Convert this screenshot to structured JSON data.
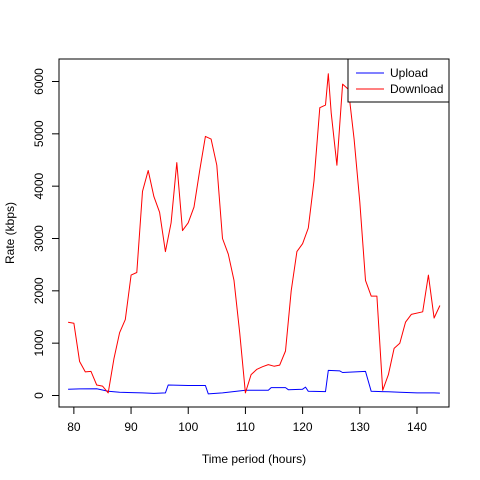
{
  "chart_data": {
    "type": "line",
    "title": "",
    "xlabel": "Time period (hours)",
    "ylabel": "Rate (kbps)",
    "xlim": [
      77.4,
      145.6
    ],
    "ylim": [
      -220,
      6430
    ],
    "xticks": [
      80,
      90,
      100,
      110,
      120,
      130,
      140
    ],
    "yticks": [
      0,
      1000,
      2000,
      3000,
      4000,
      5000,
      6000
    ],
    "grid": false,
    "legend_position": "top-right",
    "series": [
      {
        "name": "Upload",
        "color": "#0000ff",
        "points": [
          [
            79,
            120
          ],
          [
            81,
            125
          ],
          [
            84,
            130
          ],
          [
            86,
            80
          ],
          [
            88,
            60
          ],
          [
            92,
            50
          ],
          [
            94,
            40
          ],
          [
            96,
            50
          ],
          [
            96.5,
            200
          ],
          [
            100,
            190
          ],
          [
            103,
            190
          ],
          [
            103.5,
            30
          ],
          [
            106,
            50
          ],
          [
            110,
            100
          ],
          [
            114,
            100
          ],
          [
            114.5,
            150
          ],
          [
            117,
            150
          ],
          [
            117.5,
            110
          ],
          [
            120,
            120
          ],
          [
            120.5,
            160
          ],
          [
            121,
            80
          ],
          [
            124,
            75
          ],
          [
            124.5,
            480
          ],
          [
            126.5,
            470
          ],
          [
            127,
            440
          ],
          [
            131,
            460
          ],
          [
            132,
            80
          ],
          [
            135,
            70
          ],
          [
            137,
            60
          ],
          [
            140,
            50
          ],
          [
            143,
            50
          ],
          [
            144,
            45
          ]
        ]
      },
      {
        "name": "Download",
        "color": "#ff0000",
        "points": [
          [
            79,
            1400
          ],
          [
            80,
            1380
          ],
          [
            81,
            650
          ],
          [
            82,
            450
          ],
          [
            83,
            460
          ],
          [
            84,
            200
          ],
          [
            85,
            180
          ],
          [
            86,
            50
          ],
          [
            87,
            700
          ],
          [
            88,
            1200
          ],
          [
            89,
            1450
          ],
          [
            90,
            2300
          ],
          [
            91,
            2350
          ],
          [
            92,
            3900
          ],
          [
            93,
            4300
          ],
          [
            94,
            3800
          ],
          [
            95,
            3500
          ],
          [
            96,
            2750
          ],
          [
            97,
            3300
          ],
          [
            98,
            4450
          ],
          [
            99,
            3150
          ],
          [
            100,
            3300
          ],
          [
            101,
            3600
          ],
          [
            102,
            4300
          ],
          [
            103,
            4950
          ],
          [
            104,
            4900
          ],
          [
            105,
            4400
          ],
          [
            106,
            3000
          ],
          [
            107,
            2700
          ],
          [
            108,
            2200
          ],
          [
            109,
            1200
          ],
          [
            110,
            50
          ],
          [
            111,
            400
          ],
          [
            112,
            500
          ],
          [
            113,
            550
          ],
          [
            114,
            590
          ],
          [
            115,
            560
          ],
          [
            116,
            580
          ],
          [
            117,
            850
          ],
          [
            118,
            2000
          ],
          [
            119,
            2750
          ],
          [
            120,
            2900
          ],
          [
            121,
            3200
          ],
          [
            122,
            4100
          ],
          [
            123,
            5500
          ],
          [
            124,
            5550
          ],
          [
            124.5,
            6150
          ],
          [
            125,
            5400
          ],
          [
            126,
            4400
          ],
          [
            127,
            5950
          ],
          [
            128,
            5850
          ],
          [
            129,
            4900
          ],
          [
            130,
            3700
          ],
          [
            131,
            2200
          ],
          [
            132,
            1900
          ],
          [
            133,
            1900
          ],
          [
            134,
            100
          ],
          [
            135,
            400
          ],
          [
            136,
            900
          ],
          [
            137,
            1000
          ],
          [
            138,
            1400
          ],
          [
            139,
            1550
          ],
          [
            141,
            1600
          ],
          [
            142,
            2300
          ],
          [
            143,
            1480
          ],
          [
            144,
            1720
          ]
        ]
      }
    ]
  }
}
